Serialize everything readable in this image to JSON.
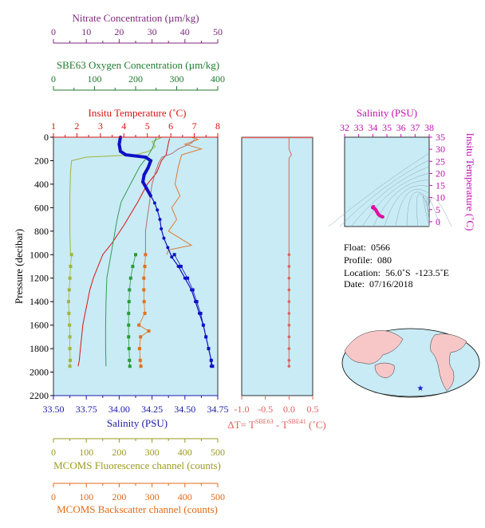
{
  "chart_data": [
    {
      "type": "line",
      "panel": "main-profile",
      "ylabel": "Pressure (decibar)",
      "y_ticks": [
        "0",
        "200",
        "400",
        "600",
        "800",
        "1000",
        "1200",
        "1400",
        "1600",
        "1800",
        "2000",
        "2200"
      ],
      "ylim": [
        2200,
        0
      ],
      "axes": {
        "nitrate": {
          "label": "Nitrate Concentration (µm/kg)",
          "range": [
            0,
            50
          ],
          "ticks": [
            "0",
            "10",
            "20",
            "30",
            "40",
            "50"
          ],
          "color": "#7b2a7b"
        },
        "oxygen": {
          "label": "SBE63 Oxygen Concentration (µm/kg)",
          "range": [
            0,
            400
          ],
          "ticks": [
            "0",
            "100",
            "200",
            "300",
            "400"
          ],
          "color": "#1f7a2e"
        },
        "temperature": {
          "label": "Insitu Temperature (˚C)",
          "range": [
            1,
            8
          ],
          "ticks": [
            "1",
            "2",
            "3",
            "4",
            "5",
            "6",
            "7",
            "8"
          ],
          "color": "#dd1111"
        },
        "salinity": {
          "label": "Salinity (PSU)",
          "range": [
            33.5,
            34.75
          ],
          "ticks": [
            "33.50",
            "33.75",
            "34.00",
            "34.25",
            "34.50",
            "34.75"
          ],
          "color": "#1a1aa8"
        },
        "fluorescence": {
          "label": "MCOMS Fluorescence channel (counts)",
          "range": [
            0,
            500
          ],
          "ticks": [
            "0",
            "100",
            "200",
            "300",
            "400",
            "500"
          ],
          "color": "#9a9a1f"
        },
        "backscatter": {
          "label": "MCOMS Backscatter channel (counts)",
          "range": [
            0,
            500
          ],
          "ticks": [
            "0",
            "100",
            "200",
            "300",
            "400",
            "500"
          ],
          "color": "#e06a1a"
        }
      },
      "series": [
        {
          "axis": "salinity",
          "color": "#1010c8",
          "points": [
            [
              34.01,
              0
            ],
            [
              34.0,
              60
            ],
            [
              34.01,
              120
            ],
            [
              34.05,
              150
            ],
            [
              34.2,
              170
            ],
            [
              34.24,
              200
            ],
            [
              34.22,
              260
            ],
            [
              34.19,
              320
            ],
            [
              34.18,
              380
            ],
            [
              34.21,
              440
            ],
            [
              34.24,
              500
            ],
            [
              34.27,
              560
            ],
            [
              34.29,
              620
            ],
            [
              34.31,
              700
            ],
            [
              34.32,
              780
            ],
            [
              34.34,
              860
            ],
            [
              34.37,
              940
            ],
            [
              34.4,
              1020
            ],
            [
              34.45,
              1100
            ],
            [
              34.5,
              1200
            ],
            [
              34.55,
              1300
            ],
            [
              34.58,
              1400
            ],
            [
              34.61,
              1500
            ],
            [
              34.64,
              1600
            ],
            [
              34.66,
              1700
            ],
            [
              34.68,
              1800
            ],
            [
              34.7,
              1900
            ],
            [
              34.7,
              1950
            ]
          ]
        },
        {
          "axis": "temperature",
          "color": "#dd1111",
          "points": [
            [
              5.95,
              10
            ],
            [
              5.9,
              50
            ],
            [
              5.85,
              100
            ],
            [
              5.8,
              150
            ],
            [
              5.6,
              200
            ],
            [
              5.4,
              300
            ],
            [
              5.0,
              400
            ],
            [
              4.6,
              550
            ],
            [
              4.3,
              650
            ],
            [
              4.0,
              750
            ],
            [
              3.5,
              900
            ],
            [
              3.1,
              1000
            ],
            [
              2.9,
              1100
            ],
            [
              2.7,
              1200
            ],
            [
              2.55,
              1300
            ],
            [
              2.45,
              1400
            ],
            [
              2.35,
              1500
            ],
            [
              2.25,
              1600
            ],
            [
              2.2,
              1700
            ],
            [
              2.15,
              1800
            ],
            [
              2.1,
              1900
            ],
            [
              2.05,
              1950
            ]
          ]
        },
        {
          "axis": "oxygen",
          "color": "#3a9a55",
          "points": [
            [
              250,
              5
            ],
            [
              245,
              50
            ],
            [
              240,
              100
            ],
            [
              230,
              160
            ],
            [
              210,
              250
            ],
            [
              195,
              350
            ],
            [
              180,
              450
            ],
            [
              165,
              550
            ],
            [
              158,
              650
            ],
            [
              155,
              700
            ],
            [
              150,
              800
            ],
            [
              145,
              900
            ],
            [
              140,
              1000
            ],
            [
              135,
              1100
            ],
            [
              130,
              1200
            ],
            [
              128,
              1400
            ],
            [
              127,
              1600
            ],
            [
              127,
              1800
            ],
            [
              128,
              1950
            ]
          ]
        },
        {
          "axis": "nitrate",
          "color": "#b07070",
          "points": [
            [
              43,
              20
            ],
            [
              42,
              50
            ],
            [
              38,
              100
            ],
            [
              36,
              140
            ],
            [
              33,
              170
            ],
            [
              32,
              220
            ],
            [
              31,
              300
            ],
            [
              30,
              400
            ],
            [
              29.5,
              500
            ],
            [
              29,
              600
            ],
            [
              28.5,
              700
            ],
            [
              28,
              800
            ],
            [
              28,
              900
            ],
            [
              28,
              1000
            ]
          ]
        }
      ],
      "marker_series": [
        {
          "axis": "fluorescence",
          "color": "#a3b43a",
          "points": [
            [
              55,
              1000
            ],
            [
              52,
              1100
            ],
            [
              50,
              1200
            ],
            [
              48,
              1300
            ],
            [
              46,
              1400
            ],
            [
              47,
              1500
            ],
            [
              49,
              1600
            ],
            [
              50,
              1700
            ],
            [
              50,
              1800
            ],
            [
              51,
              1900
            ],
            [
              50,
              1950
            ]
          ]
        },
        {
          "axis": "oxygen",
          "color": "#2a9a3a",
          "points": [
            [
              200,
              1000
            ],
            [
              193,
              1100
            ],
            [
              188,
              1200
            ],
            [
              185,
              1300
            ],
            [
              184,
              1400
            ],
            [
              183,
              1500
            ],
            [
              183,
              1600
            ],
            [
              183,
              1700
            ],
            [
              184,
              1800
            ],
            [
              185,
              1900
            ],
            [
              186,
              1950
            ]
          ]
        },
        {
          "axis": "backscatter",
          "color": "#e0721e",
          "points": [
            [
              280,
              1000
            ],
            [
              278,
              1100
            ],
            [
              275,
              1200
            ],
            [
              275,
              1300
            ],
            [
              276,
              1400
            ],
            [
              278,
              1500
            ],
            [
              260,
              1600
            ],
            [
              290,
              1650
            ],
            [
              265,
              1700
            ],
            [
              262,
              1800
            ],
            [
              264,
              1900
            ],
            [
              266,
              1950
            ]
          ]
        },
        {
          "axis": "salinity",
          "color": "#1010c8",
          "points": [
            [
              34.42,
              1000
            ],
            [
              34.47,
              1100
            ],
            [
              34.52,
              1200
            ],
            [
              34.56,
              1300
            ],
            [
              34.59,
              1400
            ],
            [
              34.62,
              1500
            ],
            [
              34.64,
              1600
            ],
            [
              34.66,
              1700
            ],
            [
              34.68,
              1800
            ],
            [
              34.7,
              1900
            ],
            [
              34.71,
              1950
            ]
          ]
        }
      ],
      "near_surface_series": [
        {
          "axis": "fluorescence",
          "color": "#a3b43a",
          "points": [
            [
              330,
              0
            ],
            [
              300,
              40
            ],
            [
              310,
              80
            ],
            [
              290,
              120
            ],
            [
              250,
              150
            ],
            [
              100,
              170
            ],
            [
              55,
              200
            ],
            [
              52,
              300
            ],
            [
              50,
              500
            ],
            [
              50,
              800
            ],
            [
              52,
              1000
            ]
          ]
        },
        {
          "axis": "backscatter",
          "color": "#e07a30",
          "points": [
            [
              420,
              0
            ],
            [
              440,
              20
            ],
            [
              400,
              60
            ],
            [
              450,
              100
            ],
            [
              390,
              150
            ],
            [
              380,
              250
            ],
            [
              370,
              400
            ],
            [
              385,
              500
            ],
            [
              360,
              600
            ],
            [
              375,
              700
            ],
            [
              350,
              800
            ],
            [
              420,
              920
            ],
            [
              350,
              960
            ],
            [
              345,
              1000
            ]
          ]
        }
      ]
    },
    {
      "type": "line",
      "panel": "delta-t",
      "xlabel": "ΔT= Tˢᴮᴱ⁶³ - Tˢᴮᴱ⁴¹ (˚C)",
      "xlabel_parts": {
        "a": "ΔT= T",
        "sup1": "SBE63",
        "b": " - T",
        "sup2": "SBE41",
        "c": " (˚C)"
      },
      "x_ticks": [
        "-1.0",
        "-0.5",
        "0.0",
        "0.5"
      ],
      "xlim": [
        -1.0,
        0.5
      ],
      "ylim": [
        2200,
        0
      ],
      "color": "#e06060",
      "points": [
        [
          0,
          0
        ],
        [
          0,
          100
        ],
        [
          0.05,
          150
        ],
        [
          0,
          180
        ],
        [
          0,
          400
        ],
        [
          0,
          800
        ],
        [
          0,
          1000
        ],
        [
          0,
          1200
        ],
        [
          0,
          1400
        ],
        [
          0,
          1600
        ],
        [
          0,
          1800
        ],
        [
          0,
          1950
        ]
      ],
      "marker_depths": [
        1000,
        1100,
        1200,
        1300,
        1400,
        1500,
        1600,
        1700,
        1800,
        1900,
        1950
      ]
    },
    {
      "type": "scatter",
      "panel": "ts-diagram",
      "title": "Salinity (PSU)",
      "ylabel": "Insitu Temperature (˚C)",
      "x_ticks": [
        "32",
        "33",
        "34",
        "35",
        "36",
        "37",
        "38"
      ],
      "y_ticks": [
        "0",
        "5",
        "10",
        "15",
        "20",
        "25",
        "30",
        "35"
      ],
      "xlim": [
        32,
        38
      ],
      "ylim": [
        -2,
        35
      ],
      "color": "#dd10a0",
      "points": [
        [
          34.0,
          6.0
        ],
        [
          34.1,
          5.5
        ],
        [
          34.2,
          5.0
        ],
        [
          34.25,
          4.5
        ],
        [
          34.3,
          4.0
        ],
        [
          34.35,
          3.5
        ],
        [
          34.4,
          3.0
        ],
        [
          34.5,
          2.5
        ],
        [
          34.6,
          2.2
        ],
        [
          34.7,
          2.0
        ],
        [
          34.05,
          6.2
        ],
        [
          34.0,
          5.8
        ],
        [
          34.15,
          5.3
        ]
      ]
    }
  ],
  "info": {
    "float": "Float:  0566",
    "profile": "Profile:  080",
    "location": "Location:  56.0˚S  -123.5˚E",
    "date": "Date:  07/16/2018"
  },
  "colors": {
    "plot_bg": "#c8ebf5",
    "map_land": "#f7c7c7",
    "map_ocean": "#c8ebf5",
    "float_marker": "#1a1ad0"
  }
}
